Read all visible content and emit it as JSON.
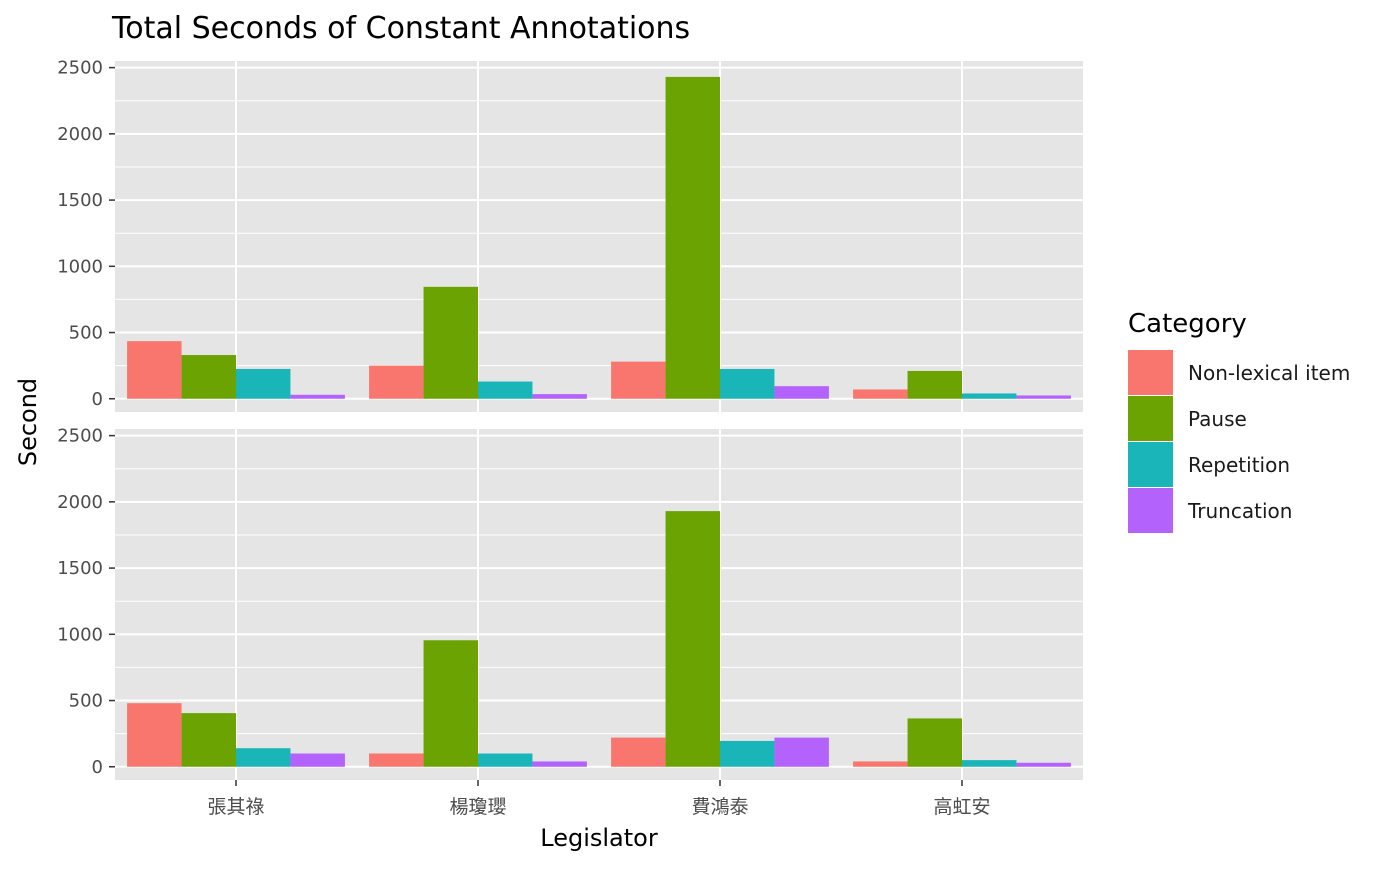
{
  "chart_data": {
    "type": "bar",
    "title": "Total Seconds of Constant Annotations",
    "xlabel": "Legislator",
    "ylabel": "Second",
    "categories": [
      "張其祿",
      "楊瓊瓔",
      "費鴻泰",
      "高虹安"
    ],
    "ylim": [
      -100,
      2550
    ],
    "yticks": [
      0,
      500,
      1000,
      1500,
      2000,
      2500
    ],
    "grid": true,
    "legend": {
      "title": "Category",
      "position": "right"
    },
    "series_colors": {
      "Non-lexical item": "#f8766d",
      "Pause": "#6ba302",
      "Repetition": "#19b5b8",
      "Truncation": "#b462fc"
    },
    "panels": [
      {
        "series": [
          {
            "name": "Non-lexical item",
            "values": [
              435,
              250,
              280,
              70
            ]
          },
          {
            "name": "Pause",
            "values": [
              330,
              845,
              2430,
              210
            ]
          },
          {
            "name": "Repetition",
            "values": [
              225,
              130,
              225,
              40
            ]
          },
          {
            "name": "Truncation",
            "values": [
              30,
              35,
              95,
              25
            ]
          }
        ]
      },
      {
        "series": [
          {
            "name": "Non-lexical item",
            "values": [
              480,
              100,
              220,
              40
            ]
          },
          {
            "name": "Pause",
            "values": [
              405,
              955,
              1930,
              365
            ]
          },
          {
            "name": "Repetition",
            "values": [
              140,
              100,
              195,
              50
            ]
          },
          {
            "name": "Truncation",
            "values": [
              100,
              40,
              220,
              30
            ]
          }
        ]
      }
    ]
  },
  "colors": {
    "panel_bg": "#e5e5e5",
    "grid": "#ffffff"
  }
}
